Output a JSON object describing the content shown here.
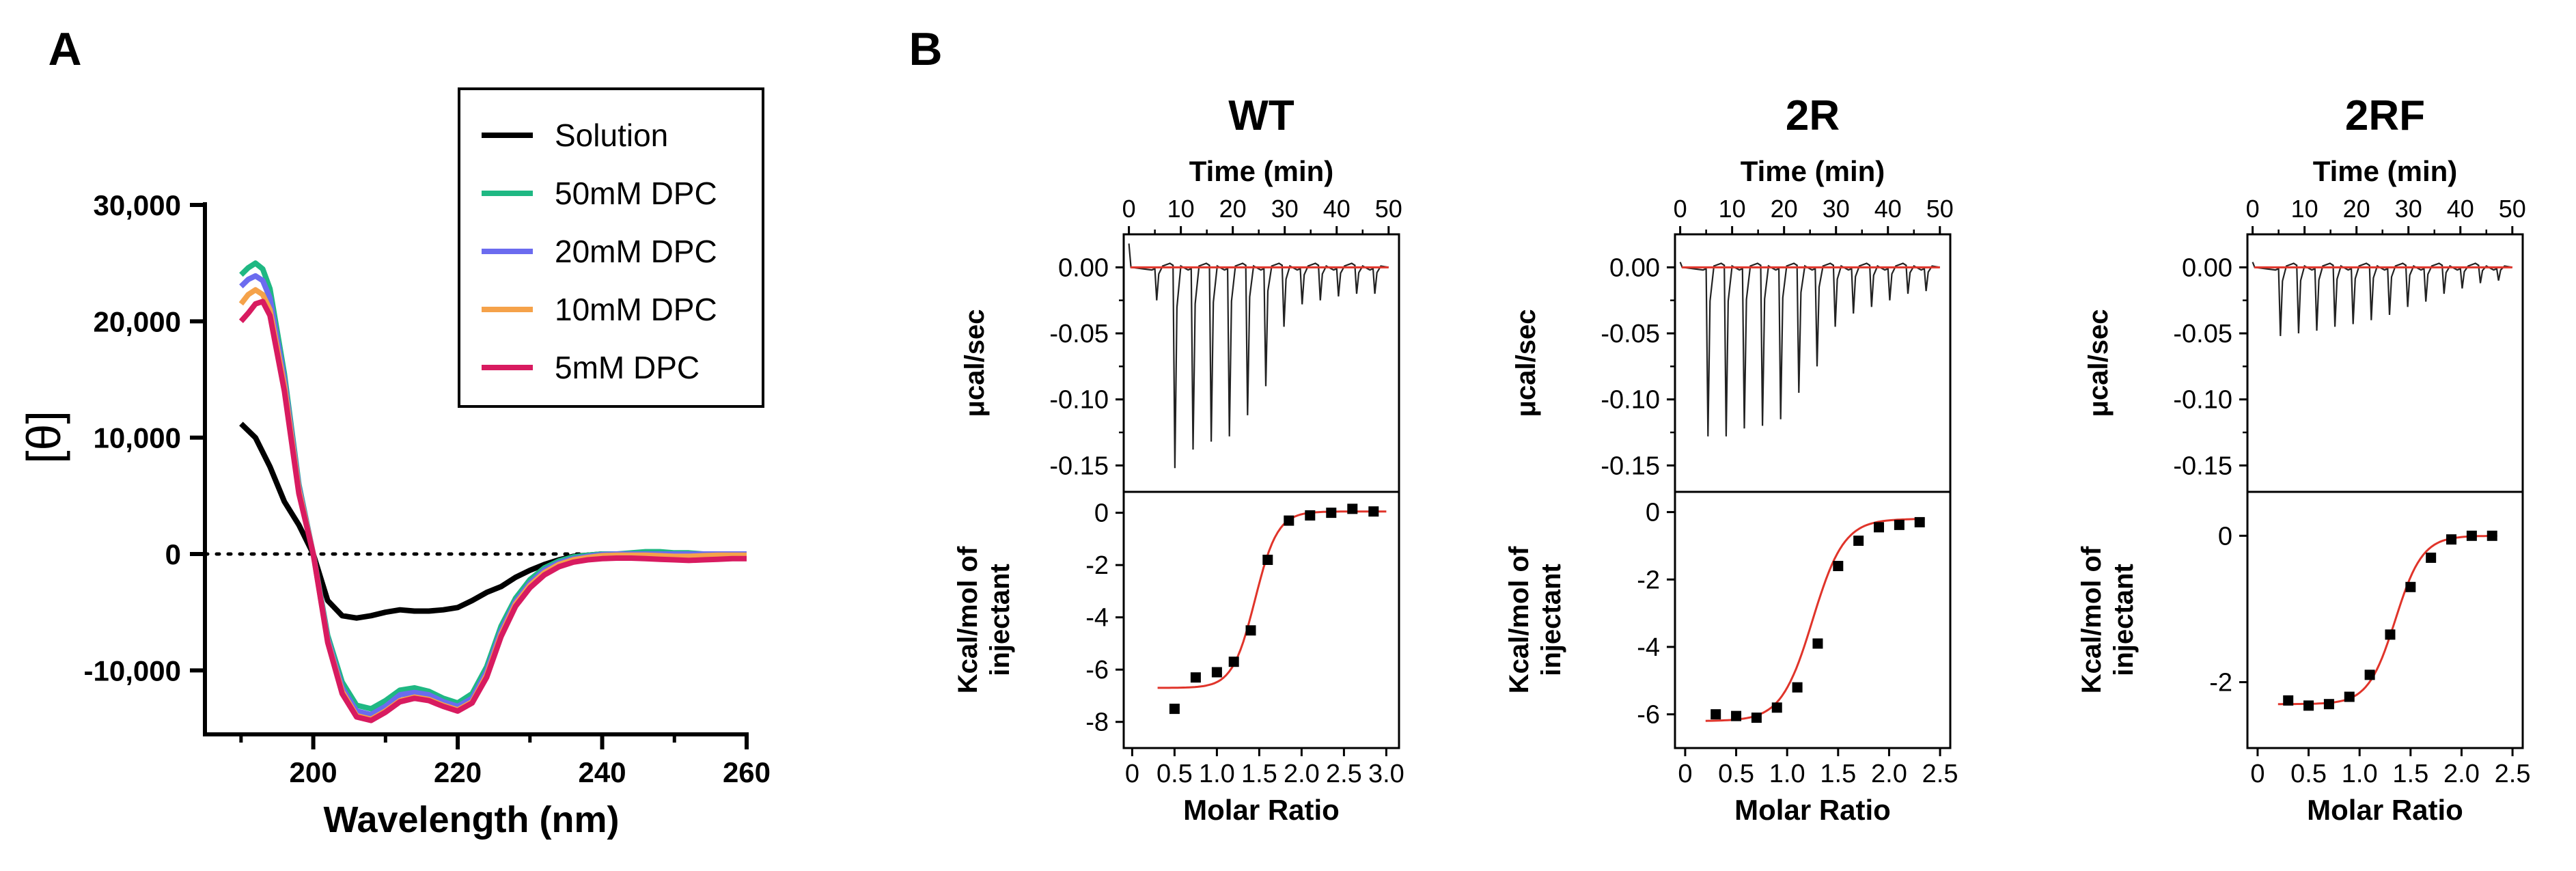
{
  "figure": {
    "panel_a": {
      "label": "A",
      "chart_type": "line",
      "ylabel": "[θ]",
      "xlabel": "Wavelength (nm)",
      "x_ticks": [
        200,
        220,
        240,
        260
      ],
      "x_tick_labels": [
        "200",
        "220",
        "240",
        "260"
      ],
      "y_ticks": [
        -10000,
        0,
        10000,
        20000,
        30000
      ],
      "y_tick_labels": [
        "-10,000",
        "0",
        "10,000",
        "20,000",
        "30,000"
      ],
      "xlim": [
        185,
        260
      ],
      "ylim": [
        -15500,
        30000
      ],
      "zero_line": "dotted",
      "legend_position": "top-right",
      "series": [
        {
          "name": "Solution",
          "color": "#000000",
          "x": [
            190,
            192,
            194,
            196,
            198,
            200,
            202,
            204,
            206,
            208,
            210,
            212,
            214,
            216,
            218,
            220,
            222,
            224,
            226,
            228,
            230,
            232,
            234,
            236,
            238,
            240,
            242,
            244,
            246,
            248,
            250,
            252,
            254,
            256,
            258,
            260
          ],
          "y": [
            11200,
            10000,
            7500,
            4500,
            2500,
            0,
            -4000,
            -5300,
            -5500,
            -5300,
            -5000,
            -4800,
            -4900,
            -4900,
            -4800,
            -4600,
            -4000,
            -3300,
            -2800,
            -2000,
            -1400,
            -900,
            -500,
            -200,
            -100,
            0,
            0,
            0,
            0,
            0,
            0,
            0,
            0,
            0,
            0,
            0
          ]
        },
        {
          "name": "50mM DPC",
          "color": "#1fb883",
          "x": [
            190,
            191,
            192,
            193,
            194,
            196,
            198,
            200,
            202,
            204,
            206,
            208,
            210,
            212,
            214,
            216,
            218,
            220,
            222,
            224,
            226,
            228,
            230,
            232,
            234,
            236,
            238,
            240,
            242,
            244,
            246,
            248,
            250,
            252,
            254,
            256,
            258,
            260
          ],
          "y": [
            24000,
            24600,
            25000,
            24500,
            22800,
            15500,
            6000,
            0,
            -7000,
            -11000,
            -13000,
            -13300,
            -12600,
            -11700,
            -11500,
            -11800,
            -12400,
            -12800,
            -12000,
            -9700,
            -6200,
            -3800,
            -2200,
            -1200,
            -600,
            -250,
            -100,
            0,
            0,
            100,
            200,
            200,
            100,
            100,
            0,
            0,
            0,
            0
          ]
        },
        {
          "name": "20mM DPC",
          "color": "#6b6bef",
          "x": [
            190,
            191,
            192,
            193,
            194,
            196,
            198,
            200,
            202,
            204,
            206,
            208,
            210,
            212,
            214,
            216,
            218,
            220,
            222,
            224,
            226,
            228,
            230,
            232,
            234,
            236,
            238,
            240,
            242,
            244,
            246,
            248,
            250,
            252,
            254,
            256,
            258,
            260
          ],
          "y": [
            23000,
            23600,
            23900,
            23500,
            22000,
            15000,
            5800,
            0,
            -7300,
            -11500,
            -13500,
            -13800,
            -13100,
            -12100,
            -11900,
            -12100,
            -12700,
            -13100,
            -12400,
            -10100,
            -6600,
            -4100,
            -2500,
            -1400,
            -750,
            -400,
            -200,
            -50,
            0,
            0,
            0,
            0,
            0,
            0,
            0,
            0,
            0,
            0
          ]
        },
        {
          "name": "10mM DPC",
          "color": "#f5a24a",
          "x": [
            190,
            191,
            192,
            193,
            194,
            196,
            198,
            200,
            202,
            204,
            206,
            208,
            210,
            212,
            214,
            216,
            218,
            220,
            222,
            224,
            226,
            228,
            230,
            232,
            234,
            236,
            238,
            240,
            242,
            244,
            246,
            248,
            250,
            252,
            254,
            256,
            258,
            260
          ],
          "y": [
            21500,
            22300,
            22700,
            22300,
            21000,
            14500,
            5500,
            0,
            -7500,
            -11800,
            -13900,
            -14200,
            -13500,
            -12600,
            -12300,
            -12500,
            -13000,
            -13400,
            -12700,
            -10400,
            -6900,
            -4300,
            -2700,
            -1600,
            -900,
            -500,
            -300,
            -150,
            -100,
            -100,
            -100,
            -150,
            -200,
            -200,
            -150,
            -100,
            -100,
            -100
          ]
        },
        {
          "name": "5mM DPC",
          "color": "#d81b60",
          "x": [
            190,
            191,
            192,
            193,
            194,
            196,
            198,
            200,
            202,
            204,
            206,
            208,
            210,
            212,
            214,
            216,
            218,
            220,
            222,
            224,
            226,
            228,
            230,
            232,
            234,
            236,
            238,
            240,
            242,
            244,
            246,
            248,
            250,
            252,
            254,
            256,
            258,
            260
          ],
          "y": [
            20000,
            20700,
            21500,
            21700,
            20500,
            14000,
            5200,
            0,
            -7600,
            -12000,
            -14000,
            -14300,
            -13600,
            -12700,
            -12400,
            -12600,
            -13100,
            -13500,
            -12800,
            -10600,
            -7100,
            -4500,
            -2900,
            -1800,
            -1100,
            -700,
            -500,
            -400,
            -350,
            -350,
            -400,
            -450,
            -500,
            -550,
            -500,
            -450,
            -400,
            -400
          ]
        }
      ]
    },
    "panel_b": {
      "label": "B",
      "time_axis_label": "Time (min)",
      "top_ylabel": "μcal/sec",
      "bottom_ylabel_line1": "Kcal/mol of",
      "bottom_ylabel_line2": "injectant",
      "bottom_xlabel": "Molar Ratio",
      "time_ticks": [
        0,
        10,
        20,
        30,
        40,
        50
      ],
      "time_tick_labels": [
        "0",
        "10",
        "20",
        "30",
        "40",
        "50"
      ],
      "time_range": [
        -1,
        52
      ],
      "top_ylim": [
        -0.17,
        0.025
      ],
      "top_y_ticks": [
        0,
        -0.05,
        -0.1,
        -0.15
      ],
      "top_y_tick_labels": [
        "0.00",
        "-0.05",
        "-0.10",
        "-0.15"
      ],
      "fit_color": "#e0342a",
      "raw_color": "#222222",
      "subplots": [
        {
          "title": "WT",
          "injection_times": [
            5,
            8.5,
            12,
            15.5,
            19,
            22.5,
            26,
            29.5,
            33,
            36.5,
            40,
            43.5,
            47
          ],
          "injection_peaks": [
            -0.025,
            -0.152,
            -0.138,
            -0.132,
            -0.128,
            -0.112,
            -0.09,
            -0.045,
            -0.028,
            -0.025,
            -0.022,
            -0.02,
            -0.02
          ],
          "bottom_ylim": [
            -9,
            0.8
          ],
          "bottom_y_ticks": [
            0,
            -2,
            -4,
            -6,
            -8
          ],
          "bottom_y_tick_labels": [
            "0",
            "-2",
            "-4",
            "-6",
            "-8"
          ],
          "bottom_xlim": [
            -0.1,
            3.15
          ],
          "bottom_x_ticks": [
            0,
            0.5,
            1.0,
            1.5,
            2.0,
            2.5,
            3.0
          ],
          "bottom_x_tick_labels": [
            "0",
            "0.5",
            "1.0",
            "1.5",
            "2.0",
            "2.5",
            "3.0"
          ],
          "points": {
            "x": [
              0.5,
              0.75,
              1.0,
              1.2,
              1.4,
              1.6,
              1.85,
              2.1,
              2.35,
              2.6,
              2.85
            ],
            "y": [
              -7.5,
              -6.3,
              -6.1,
              -5.7,
              -4.5,
              -1.8,
              -0.3,
              -0.1,
              0.0,
              0.15,
              0.05
            ]
          },
          "fit": {
            "bottom": -6.7,
            "top": 0.05,
            "x0": 1.45,
            "k": 7.5,
            "xstart": 0.3,
            "xend": 3.0
          }
        },
        {
          "title": "2R",
          "injection_times": [
            5,
            8.5,
            12,
            15.5,
            19,
            22.5,
            26,
            29.5,
            33,
            36.5,
            40,
            43.5,
            47
          ],
          "injection_peaks": [
            -0.128,
            -0.128,
            -0.122,
            -0.12,
            -0.115,
            -0.095,
            -0.075,
            -0.045,
            -0.035,
            -0.03,
            -0.025,
            -0.02,
            -0.018
          ],
          "bottom_ylim": [
            -7,
            0.6
          ],
          "bottom_y_ticks": [
            0,
            -2,
            -4,
            -6
          ],
          "bottom_y_tick_labels": [
            "0",
            "-2",
            "-4",
            "-6"
          ],
          "bottom_xlim": [
            -0.1,
            2.6
          ],
          "bottom_x_ticks": [
            0,
            0.5,
            1.0,
            1.5,
            2.0,
            2.5
          ],
          "bottom_x_tick_labels": [
            "0",
            "0.5",
            "1.0",
            "1.5",
            "2.0",
            "2.5"
          ],
          "points": {
            "x": [
              0.3,
              0.5,
              0.7,
              0.9,
              1.1,
              1.3,
              1.5,
              1.7,
              1.9,
              2.1,
              2.3
            ],
            "y": [
              -6.0,
              -6.05,
              -6.1,
              -5.8,
              -5.2,
              -3.9,
              -1.6,
              -0.85,
              -0.45,
              -0.38,
              -0.3
            ]
          },
          "fit": {
            "bottom": -6.2,
            "top": -0.2,
            "x0": 1.25,
            "k": 6.5,
            "xstart": 0.2,
            "xend": 2.35
          }
        },
        {
          "title": "2RF",
          "injection_times": [
            5,
            8.5,
            12,
            15.5,
            19,
            22.5,
            26,
            29.5,
            33,
            36.5,
            40,
            43.5,
            47
          ],
          "injection_peaks": [
            -0.052,
            -0.05,
            -0.048,
            -0.045,
            -0.043,
            -0.04,
            -0.036,
            -0.03,
            -0.026,
            -0.02,
            -0.016,
            -0.012,
            -0.01
          ],
          "bottom_ylim": [
            -2.9,
            0.6
          ],
          "bottom_y_ticks": [
            0,
            -2
          ],
          "bottom_y_tick_labels": [
            "0",
            "-2"
          ],
          "bottom_xlim": [
            -0.1,
            2.6
          ],
          "bottom_x_ticks": [
            0,
            0.5,
            1.0,
            1.5,
            2.0,
            2.5
          ],
          "bottom_x_tick_labels": [
            "0",
            "0.5",
            "1.0",
            "1.5",
            "2.0",
            "2.5"
          ],
          "points": {
            "x": [
              0.3,
              0.5,
              0.7,
              0.9,
              1.1,
              1.3,
              1.5,
              1.7,
              1.9,
              2.1,
              2.3
            ],
            "y": [
              -2.25,
              -2.32,
              -2.3,
              -2.2,
              -1.9,
              -1.35,
              -0.7,
              -0.3,
              -0.05,
              0.0,
              0.0
            ]
          },
          "fit": {
            "bottom": -2.3,
            "top": 0.0,
            "x0": 1.35,
            "k": 7.5,
            "xstart": 0.2,
            "xend": 2.35
          }
        }
      ]
    }
  },
  "chart_data": [
    {
      "type": "line",
      "title": "A",
      "xlabel": "Wavelength (nm)",
      "ylabel": "[θ]",
      "xlim": [
        185,
        260
      ],
      "ylim": [
        -15500,
        30000
      ],
      "series_names": [
        "Solution",
        "50mM DPC",
        "20mM DPC",
        "10mM DPC",
        "5mM DPC"
      ]
    },
    {
      "type": "line",
      "title": "WT",
      "xlabel": "Molar Ratio",
      "ylabel": "Kcal/mol of injectant"
    },
    {
      "type": "line",
      "title": "2R",
      "xlabel": "Molar Ratio",
      "ylabel": "Kcal/mol of injectant"
    },
    {
      "type": "line",
      "title": "2RF",
      "xlabel": "Molar Ratio",
      "ylabel": "Kcal/mol of injectant"
    }
  ]
}
